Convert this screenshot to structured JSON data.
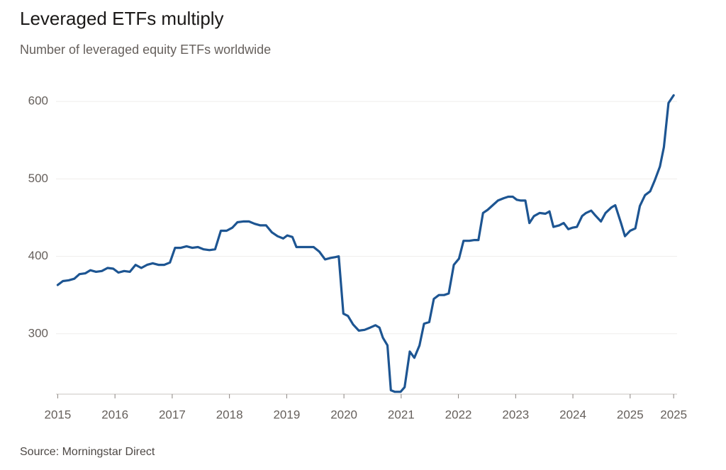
{
  "chart_data": {
    "type": "line",
    "title": "Leveraged ETFs multiply",
    "subtitle": "Number of leveraged equity ETFs worldwide",
    "source": "Source: Morningstar Direct",
    "x": [
      2015.0,
      2015.09,
      2015.19,
      2015.29,
      2015.38,
      2015.48,
      2015.57,
      2015.67,
      2015.77,
      2015.87,
      2015.97,
      2016.06,
      2016.16,
      2016.26,
      2016.36,
      2016.46,
      2016.56,
      2016.66,
      2016.76,
      2016.86,
      2016.96,
      2017.05,
      2017.15,
      2017.25,
      2017.35,
      2017.45,
      2017.55,
      2017.65,
      2017.75,
      2017.85,
      2017.95,
      2018.05,
      2018.14,
      2018.24,
      2018.34,
      2018.44,
      2018.54,
      2018.64,
      2018.74,
      2018.84,
      2018.94,
      2019.01,
      2019.1,
      2019.17,
      2019.27,
      2019.37,
      2019.47,
      2019.57,
      2019.67,
      2019.77,
      2019.85,
      2019.91,
      2019.99,
      2020.07,
      2020.16,
      2020.26,
      2020.36,
      2020.46,
      2020.55,
      2020.62,
      2020.68,
      2020.76,
      2020.82,
      2020.89,
      2020.99,
      2021.06,
      2021.15,
      2021.23,
      2021.32,
      2021.4,
      2021.49,
      2021.57,
      2021.66,
      2021.75,
      2021.83,
      2021.92,
      2022.01,
      2022.09,
      2022.19,
      2022.28,
      2022.35,
      2022.43,
      2022.51,
      2022.6,
      2022.69,
      2022.79,
      2022.87,
      2022.95,
      2023.02,
      2023.09,
      2023.17,
      2023.24,
      2023.32,
      2023.42,
      2023.52,
      2023.59,
      2023.66,
      2023.76,
      2023.84,
      2023.92,
      2023.99,
      2024.07,
      2024.16,
      2024.23,
      2024.32,
      2024.39,
      2024.49,
      2024.57,
      2024.67,
      2024.74,
      2024.84,
      2024.91,
      2025.0,
      2025.09,
      2025.17,
      2025.26,
      2025.35,
      2025.43,
      2025.52,
      2025.59,
      2025.67,
      2025.76
    ],
    "series": [
      {
        "name": "Leveraged equity ETFs",
        "color": "#1d5592",
        "values": [
          363,
          368,
          369,
          371,
          377,
          378,
          382,
          380,
          381,
          385,
          384,
          379,
          381,
          380,
          389,
          385,
          389,
          391,
          389,
          389,
          392,
          411,
          411,
          413,
          411,
          412,
          409,
          408,
          409,
          433,
          433,
          437,
          444,
          445,
          445,
          442,
          440,
          440,
          431,
          426,
          423,
          427,
          425,
          412,
          412,
          412,
          412,
          406,
          396,
          398,
          399,
          400,
          326,
          323,
          312,
          304,
          305,
          308,
          311,
          308,
          295,
          285,
          227,
          225,
          225,
          231,
          277,
          269,
          285,
          313,
          315,
          345,
          350,
          350,
          352,
          389,
          397,
          420,
          420,
          421,
          421,
          456,
          460,
          466,
          472,
          475,
          477,
          477,
          473,
          472,
          472,
          443,
          452,
          456,
          455,
          458,
          438,
          440,
          443,
          435,
          437,
          438,
          452,
          456,
          459,
          453,
          445,
          456,
          463,
          466,
          443,
          426,
          433,
          436,
          465,
          479,
          484,
          498,
          516,
          541,
          598,
          608
        ]
      }
    ],
    "xlim": [
      2014.97,
      2025.82
    ],
    "xticks": [
      2015,
      2016,
      2017,
      2018,
      2019,
      2020,
      2021,
      2022,
      2023,
      2024,
      2025,
      {
        "value": 2025.76,
        "label": "2025"
      }
    ],
    "ylim": [
      222,
      612
    ],
    "yticks": [
      300,
      400,
      500,
      600
    ],
    "grid": true
  }
}
